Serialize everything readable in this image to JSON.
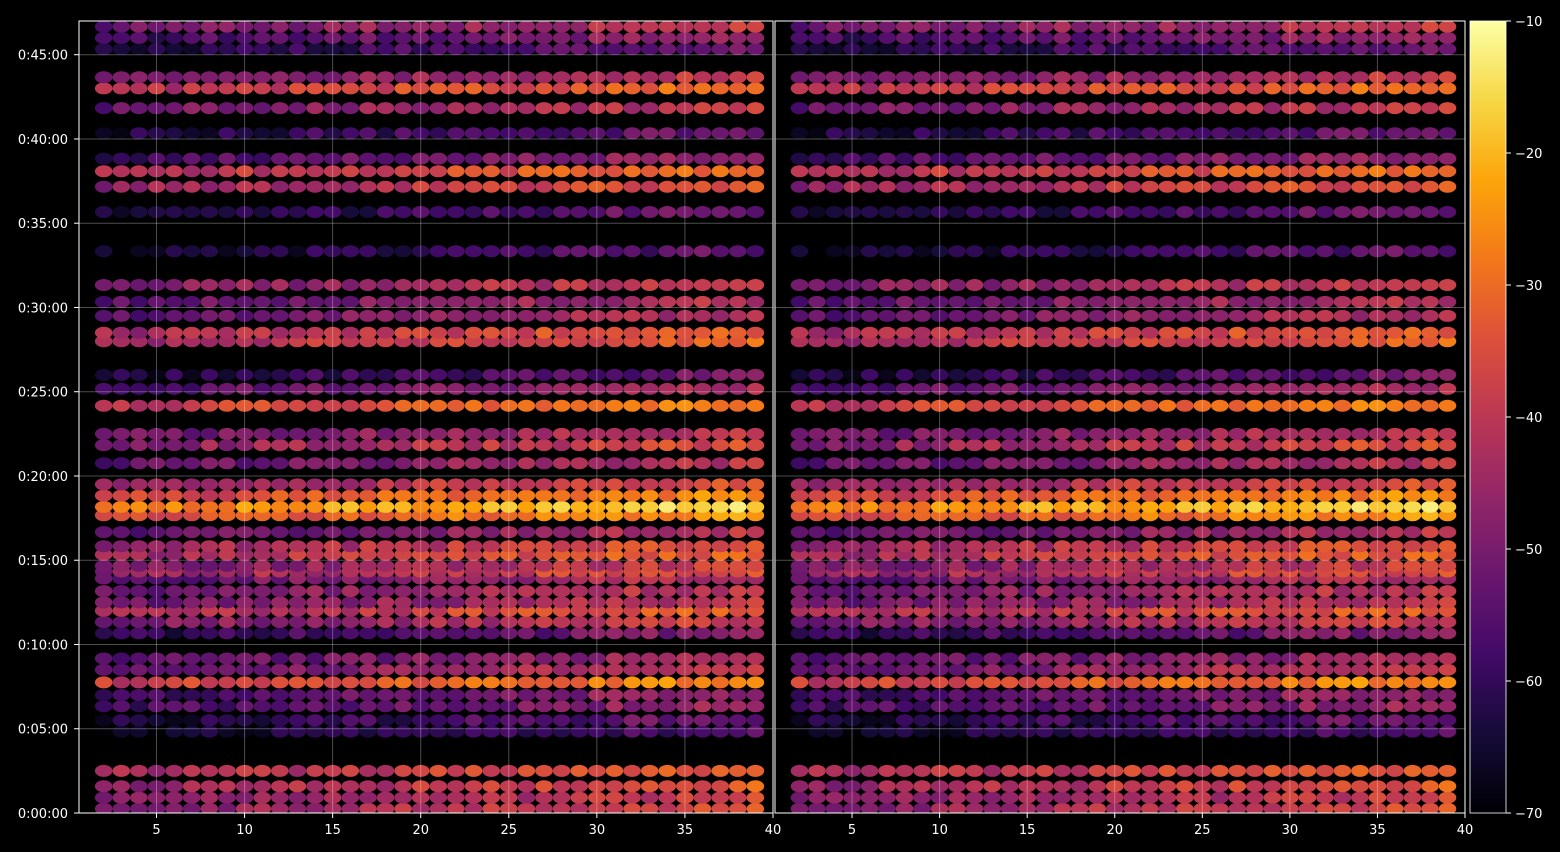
{
  "chart_data": {
    "type": "heatmap",
    "panels": [
      {
        "name": "",
        "x_range": [
          1,
          40
        ]
      },
      {
        "name": "",
        "x_range": [
          1,
          40
        ]
      }
    ],
    "x": {
      "min": 1,
      "max": 40,
      "step": 1,
      "tick_labels": [
        "5",
        "10",
        "15",
        "20",
        "25",
        "30",
        "35",
        "40"
      ],
      "tick_values": [
        5,
        10,
        15,
        20,
        25,
        30,
        35,
        40
      ]
    },
    "y": {
      "min_seconds": 0,
      "max_seconds": 2820,
      "tick_labels": [
        "0:00:00",
        "0:05:00",
        "0:10:00",
        "0:15:00",
        "0:20:00",
        "0:25:00",
        "0:30:00",
        "0:35:00",
        "0:40:00",
        "0:45:00"
      ],
      "tick_values": [
        0,
        300,
        600,
        900,
        1200,
        1500,
        1800,
        2100,
        2400,
        2700
      ]
    },
    "colorbar": {
      "min": -70,
      "max": -10,
      "colormap": "inferno",
      "tick_labels": [
        "-70",
        "-60",
        "-50",
        "-40",
        "-30",
        "-20",
        "-10"
      ],
      "tick_values": [
        -70,
        -60,
        -50,
        -40,
        -30,
        -20,
        -10
      ]
    },
    "bands": [
      {
        "t": 15,
        "level": -42
      },
      {
        "t": 55,
        "level": -44
      },
      {
        "t": 95,
        "level": -40
      },
      {
        "t": 150,
        "level": -38
      },
      {
        "t": 290,
        "level": -62
      },
      {
        "t": 330,
        "level": -58
      },
      {
        "t": 380,
        "level": -52
      },
      {
        "t": 420,
        "level": -52
      },
      {
        "t": 465,
        "level": -32
      },
      {
        "t": 510,
        "level": -46
      },
      {
        "t": 550,
        "level": -50
      },
      {
        "t": 640,
        "level": -55
      },
      {
        "t": 680,
        "level": -44
      },
      {
        "t": 720,
        "level": -38
      },
      {
        "t": 750,
        "level": -46
      },
      {
        "t": 790,
        "level": -46
      },
      {
        "t": 835,
        "level": -48
      },
      {
        "t": 860,
        "level": -40
      },
      {
        "t": 880,
        "level": -44
      },
      {
        "t": 920,
        "level": -38
      },
      {
        "t": 950,
        "level": -40
      },
      {
        "t": 1000,
        "level": -48
      },
      {
        "t": 1060,
        "level": -30
      },
      {
        "t": 1090,
        "level": -22
      },
      {
        "t": 1130,
        "level": -32
      },
      {
        "t": 1170,
        "level": -40
      },
      {
        "t": 1245,
        "level": -48
      },
      {
        "t": 1310,
        "level": -42
      },
      {
        "t": 1350,
        "level": -46
      },
      {
        "t": 1450,
        "level": -34
      },
      {
        "t": 1510,
        "level": -50
      },
      {
        "t": 1560,
        "level": -58
      },
      {
        "t": 1680,
        "level": -38
      },
      {
        "t": 1710,
        "level": -38
      },
      {
        "t": 1770,
        "level": -48
      },
      {
        "t": 1820,
        "level": -48
      },
      {
        "t": 1880,
        "level": -44
      },
      {
        "t": 2000,
        "level": -60
      },
      {
        "t": 2140,
        "level": -58
      },
      {
        "t": 2230,
        "level": -40
      },
      {
        "t": 2285,
        "level": -36
      },
      {
        "t": 2330,
        "level": -52
      },
      {
        "t": 2420,
        "level": -58
      },
      {
        "t": 2510,
        "level": -46
      },
      {
        "t": 2580,
        "level": -36
      },
      {
        "t": 2620,
        "level": -46
      },
      {
        "t": 2720,
        "level": -58
      },
      {
        "t": 2760,
        "level": -52
      },
      {
        "t": 2800,
        "level": -46
      }
    ],
    "x_ramp": 14,
    "grid": true,
    "legend": "colorbar-right"
  }
}
